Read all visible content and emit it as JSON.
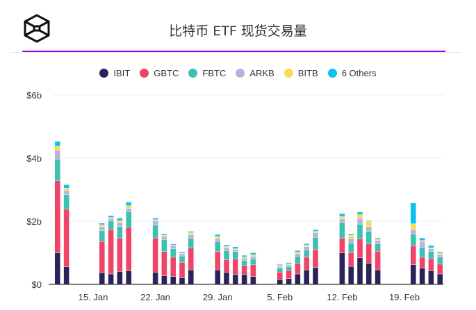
{
  "header": {
    "title": "比特币 ETF 现货交易量"
  },
  "chart_data": {
    "type": "bar",
    "stacked": true,
    "title": "比特币 ETF 现货交易量",
    "xlabel": "",
    "ylabel": "",
    "ylim": [
      0,
      6
    ],
    "y_unit": "billion USD",
    "y_ticks": [
      {
        "v": 0,
        "label": "$0"
      },
      {
        "v": 2,
        "label": "$2b"
      },
      {
        "v": 4,
        "label": "$4b"
      },
      {
        "v": 6,
        "label": "$6b"
      }
    ],
    "x_ticks": [
      {
        "day": 15,
        "label": "15. Jan"
      },
      {
        "day": 22,
        "label": "22. Jan"
      },
      {
        "day": 29,
        "label": "29. Jan"
      },
      {
        "day": 36,
        "label": "5. Feb"
      },
      {
        "day": 43,
        "label": "12. Feb"
      },
      {
        "day": 50,
        "label": "19. Feb"
      }
    ],
    "legend_position": "top-center",
    "grid": true,
    "series_colors": {
      "IBIT": "#2a2359",
      "GBTC": "#ef4367",
      "FBTC": "#3dbfb1",
      "ARKB": "#b8b2e0",
      "BITB": "#fcdb52",
      "6 Others": "#0fc1ef"
    },
    "categories": [
      "Jan 11",
      "Jan 12",
      "Jan 16",
      "Jan 17",
      "Jan 18",
      "Jan 19",
      "Jan 22",
      "Jan 23",
      "Jan 24",
      "Jan 25",
      "Jan 26",
      "Jan 29",
      "Jan 30",
      "Jan 31",
      "Feb 1",
      "Feb 2",
      "Feb 5",
      "Feb 6",
      "Feb 7",
      "Feb 8",
      "Feb 9",
      "Feb 12",
      "Feb 13",
      "Feb 14",
      "Feb 15",
      "Feb 16",
      "Feb 20",
      "Feb 21",
      "Feb 22",
      "Feb 23"
    ],
    "days": [
      11,
      12,
      16,
      17,
      18,
      19,
      22,
      23,
      24,
      25,
      26,
      29,
      30,
      31,
      32,
      33,
      36,
      37,
      38,
      39,
      40,
      43,
      44,
      45,
      46,
      47,
      51,
      52,
      53,
      54
    ],
    "series": [
      {
        "name": "IBIT",
        "values": [
          1.0,
          0.56,
          0.37,
          0.33,
          0.41,
          0.43,
          0.38,
          0.27,
          0.25,
          0.21,
          0.46,
          0.46,
          0.38,
          0.31,
          0.31,
          0.25,
          0.15,
          0.18,
          0.33,
          0.46,
          0.53,
          1.0,
          0.57,
          0.84,
          0.67,
          0.46,
          0.62,
          0.51,
          0.43,
          0.33
        ]
      },
      {
        "name": "GBTC",
        "values": [
          2.28,
          1.82,
          0.99,
          1.4,
          1.06,
          1.38,
          1.09,
          0.77,
          0.61,
          0.49,
          0.69,
          0.58,
          0.4,
          0.5,
          0.29,
          0.37,
          0.24,
          0.26,
          0.34,
          0.4,
          0.57,
          0.47,
          0.43,
          0.6,
          0.61,
          0.59,
          0.61,
          0.35,
          0.38,
          0.31
        ]
      },
      {
        "name": "FBTC",
        "values": [
          0.68,
          0.46,
          0.34,
          0.28,
          0.36,
          0.5,
          0.41,
          0.38,
          0.27,
          0.2,
          0.31,
          0.32,
          0.28,
          0.23,
          0.16,
          0.19,
          0.12,
          0.12,
          0.22,
          0.23,
          0.39,
          0.49,
          0.31,
          0.47,
          0.4,
          0.23,
          0.36,
          0.31,
          0.23,
          0.22
        ]
      },
      {
        "name": "ARKB",
        "values": [
          0.29,
          0.13,
          0.13,
          0.07,
          0.13,
          0.09,
          0.13,
          0.1,
          0.1,
          0.07,
          0.11,
          0.09,
          0.09,
          0.06,
          0.07,
          0.08,
          0.05,
          0.06,
          0.08,
          0.11,
          0.14,
          0.11,
          0.15,
          0.18,
          0.15,
          0.11,
          0.14,
          0.19,
          0.09,
          0.08
        ]
      },
      {
        "name": "BITB",
        "values": [
          0.13,
          0.08,
          0.06,
          0.04,
          0.06,
          0.09,
          0.04,
          0.04,
          0.02,
          0.02,
          0.07,
          0.07,
          0.05,
          0.03,
          0.04,
          0.05,
          0.04,
          0.03,
          0.05,
          0.05,
          0.05,
          0.08,
          0.1,
          0.12,
          0.16,
          0.04,
          0.19,
          0.03,
          0.03,
          0.05
        ]
      },
      {
        "name": "6 Others",
        "values": [
          0.15,
          0.11,
          0.05,
          0.06,
          0.08,
          0.12,
          0.05,
          0.04,
          0.03,
          0.04,
          0.04,
          0.06,
          0.05,
          0.06,
          0.05,
          0.06,
          0.03,
          0.04,
          0.05,
          0.04,
          0.05,
          0.09,
          0.04,
          0.08,
          0.03,
          0.04,
          0.66,
          0.08,
          0.07,
          0.04
        ]
      }
    ]
  }
}
